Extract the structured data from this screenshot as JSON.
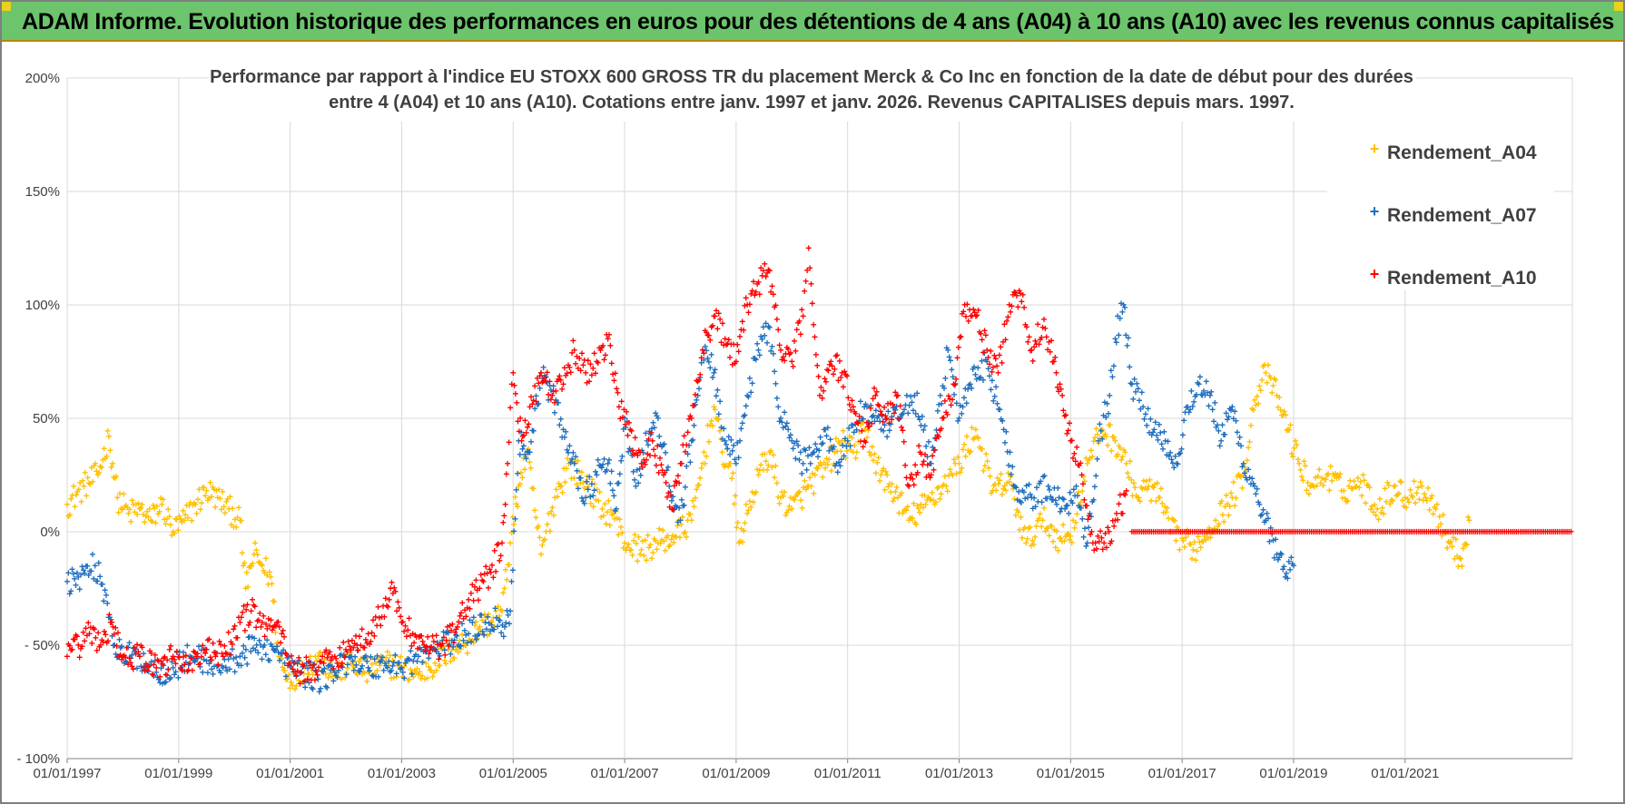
{
  "banner": {
    "title": "ADAM Informe. Evolution historique des performances en euros pour des détentions de 4 ans (A04) à 10 ans (A10) avec les revenus connus capitalisés",
    "background": "#6cc46c"
  },
  "chart_data": {
    "type": "scatter",
    "title_line1": "Performance par rapport à l'indice EU STOXX 600 GROSS TR  du placement Merck & Co Inc en fonction de la date de début pour des durées",
    "title_line2": "entre 4 (A04) et 10 ans (A10). Cotations entre janv. 1997 et janv. 2026. Revenus CAPITALISES depuis mars. 1997.",
    "xlabel": "",
    "ylabel": "",
    "xlim": [
      1997.0,
      2024.0
    ],
    "ylim": [
      -100,
      200
    ],
    "y_ticks": [
      {
        "value": 200,
        "label": "200%"
      },
      {
        "value": 150,
        "label": "150%"
      },
      {
        "value": 100,
        "label": "100%"
      },
      {
        "value": 50,
        "label": "50%"
      },
      {
        "value": 0,
        "label": "0%"
      },
      {
        "value": -50,
        "label": "- 50%"
      },
      {
        "value": -100,
        "label": "- 100%"
      }
    ],
    "x_ticks": [
      {
        "value": 1997,
        "label": "01/01/1997"
      },
      {
        "value": 1999,
        "label": "01/01/1999"
      },
      {
        "value": 2001,
        "label": "01/01/2001"
      },
      {
        "value": 2003,
        "label": "01/01/2003"
      },
      {
        "value": 2005,
        "label": "01/01/2005"
      },
      {
        "value": 2007,
        "label": "01/01/2007"
      },
      {
        "value": 2009,
        "label": "01/01/2009"
      },
      {
        "value": 2011,
        "label": "01/01/2011"
      },
      {
        "value": 2013,
        "label": "01/01/2013"
      },
      {
        "value": 2015,
        "label": "01/01/2015"
      },
      {
        "value": 2017,
        "label": "01/01/2017"
      },
      {
        "value": 2019,
        "label": "01/01/2019"
      },
      {
        "value": 2021,
        "label": "01/01/2021"
      }
    ],
    "grid": true,
    "legend_position": "right",
    "marker": "+",
    "series": [
      {
        "name": "Rendement_A04",
        "color": "#ffc000",
        "x": [
          1997.0,
          1997.3,
          1997.55,
          1997.75,
          1997.9,
          1998.1,
          1998.3,
          1998.5,
          1998.7,
          1998.9,
          1999.1,
          1999.3,
          1999.5,
          1999.7,
          1999.9,
          2000.1,
          2000.2,
          2000.35,
          2000.5,
          2000.65,
          2000.8,
          2000.95,
          2001.2,
          2001.5,
          2001.8,
          2002.1,
          2002.4,
          2002.7,
          2003.0,
          2003.3,
          2003.6,
          2003.9,
          2004.2,
          2004.4,
          2004.6,
          2004.8,
          2004.95,
          2005.1,
          2005.25,
          2005.5,
          2005.75,
          2006.0,
          2006.3,
          2006.6,
          2006.8,
          2007.0,
          2007.3,
          2007.6,
          2007.9,
          2008.2,
          2008.4,
          2008.6,
          2008.75,
          2008.9,
          2009.05,
          2009.2,
          2009.4,
          2009.6,
          2009.8,
          2010.0,
          2010.3,
          2010.6,
          2010.9,
          2011.1,
          2011.3,
          2011.6,
          2011.9,
          2012.1,
          2012.4,
          2012.7,
          2013.0,
          2013.3,
          2013.6,
          2013.9,
          2014.2,
          2014.5,
          2014.8,
          2015.0,
          2015.3,
          2015.55,
          2015.8,
          2016.0,
          2016.2,
          2016.4,
          2016.6,
          2016.8,
          2017.0,
          2017.2,
          2017.4,
          2017.6,
          2017.9,
          2018.1,
          2018.3,
          2018.5,
          2018.7,
          2018.9,
          2019.1,
          2019.3,
          2019.6,
          2019.9,
          2020.2,
          2020.5,
          2020.8,
          2021.0,
          2021.3,
          2021.55,
          2021.8,
          2022.0,
          2022.15
        ],
        "y": [
          12,
          20,
          25,
          42,
          15,
          8,
          10,
          5,
          12,
          0,
          5,
          12,
          18,
          15,
          10,
          5,
          -25,
          -10,
          -15,
          -20,
          -55,
          -65,
          -62,
          -55,
          -62,
          -58,
          -62,
          -58,
          -60,
          -63,
          -58,
          -52,
          -48,
          -42,
          -40,
          -35,
          -5,
          20,
          35,
          -10,
          15,
          30,
          22,
          10,
          8,
          -5,
          -8,
          -5,
          -2,
          5,
          30,
          55,
          35,
          30,
          -5,
          8,
          25,
          35,
          15,
          10,
          20,
          28,
          40,
          35,
          45,
          25,
          15,
          5,
          12,
          20,
          30,
          45,
          18,
          22,
          -5,
          5,
          -3,
          -2,
          30,
          45,
          40,
          30,
          15,
          20,
          15,
          0,
          -3,
          -8,
          -2,
          5,
          15,
          25,
          58,
          70,
          60,
          45,
          30,
          20,
          25,
          18,
          22,
          10,
          20,
          15,
          20,
          10,
          -5,
          -12,
          5
        ]
      },
      {
        "name": "Rendement_A07",
        "color": "#1f6fbf",
        "x": [
          1997.0,
          1997.2,
          1997.5,
          1997.7,
          1997.85,
          1998.0,
          1998.3,
          1998.6,
          1998.9,
          1999.2,
          1999.5,
          1999.8,
          2000.1,
          2000.4,
          2000.7,
          2000.9,
          2001.2,
          2001.5,
          2001.8,
          2002.1,
          2002.4,
          2002.7,
          2003.0,
          2003.3,
          2003.6,
          2003.9,
          2004.2,
          2004.5,
          2004.7,
          2004.85,
          2004.95,
          2005.1,
          2005.3,
          2005.5,
          2005.7,
          2005.9,
          2006.1,
          2006.3,
          2006.5,
          2006.7,
          2006.85,
          2007.0,
          2007.2,
          2007.4,
          2007.6,
          2007.8,
          2008.0,
          2008.2,
          2008.4,
          2008.6,
          2008.8,
          2009.0,
          2009.2,
          2009.4,
          2009.6,
          2009.8,
          2010.0,
          2010.2,
          2010.4,
          2010.6,
          2010.8,
          2011.0,
          2011.3,
          2011.6,
          2011.9,
          2012.2,
          2012.5,
          2012.8,
          2013.0,
          2013.2,
          2013.5,
          2013.8,
          2014.0,
          2014.3,
          2014.6,
          2014.9,
          2015.1,
          2015.3,
          2015.5,
          2015.7,
          2015.8,
          2015.95,
          2016.1,
          2016.3,
          2016.5,
          2016.7,
          2016.9,
          2017.1,
          2017.3,
          2017.5,
          2017.7,
          2017.9,
          2018.1,
          2018.3,
          2018.5,
          2018.7,
          2018.85,
          2019.0
        ],
        "y": [
          -22,
          -20,
          -15,
          -28,
          -50,
          -55,
          -55,
          -62,
          -60,
          -55,
          -57,
          -60,
          -55,
          -50,
          -52,
          -58,
          -62,
          -65,
          -62,
          -55,
          -60,
          -58,
          -60,
          -55,
          -52,
          -48,
          -45,
          -40,
          -38,
          -42,
          -35,
          40,
          35,
          70,
          60,
          45,
          30,
          15,
          25,
          30,
          10,
          50,
          20,
          40,
          50,
          20,
          5,
          40,
          80,
          70,
          40,
          30,
          60,
          80,
          90,
          50,
          40,
          30,
          35,
          45,
          30,
          40,
          55,
          45,
          50,
          60,
          30,
          80,
          50,
          65,
          75,
          45,
          20,
          15,
          20,
          10,
          20,
          -5,
          40,
          60,
          85,
          100,
          65,
          55,
          45,
          40,
          30,
          55,
          65,
          60,
          40,
          55,
          30,
          20,
          5,
          -10,
          -20,
          -15
        ]
      },
      {
        "name": "Rendement_A10",
        "color": "#ff0000",
        "x": [
          1997.0,
          1997.2,
          1997.4,
          1997.6,
          1997.8,
          1998.0,
          1998.3,
          1998.6,
          1998.9,
          1999.2,
          1999.5,
          1999.8,
          2000.1,
          2000.3,
          2000.5,
          2000.7,
          2000.85,
          2001.0,
          2001.2,
          2001.4,
          2001.6,
          2001.8,
          2002.0,
          2002.2,
          2002.4,
          2002.6,
          2002.8,
          2003.0,
          2003.2,
          2003.4,
          2003.6,
          2003.8,
          2004.0,
          2004.2,
          2004.4,
          2004.6,
          2004.8,
          2004.9,
          2005.0,
          2005.15,
          2005.3,
          2005.5,
          2005.7,
          2005.9,
          2006.1,
          2006.3,
          2006.5,
          2006.7,
          2006.9,
          2007.1,
          2007.3,
          2007.5,
          2007.7,
          2007.85,
          2008.0,
          2008.2,
          2008.4,
          2008.6,
          2008.8,
          2009.0,
          2009.2,
          2009.4,
          2009.6,
          2009.8,
          2010.0,
          2010.2,
          2010.3,
          2010.5,
          2010.7,
          2010.9,
          2011.1,
          2011.3,
          2011.5,
          2011.7,
          2011.9,
          2012.1,
          2012.3,
          2012.5,
          2012.7,
          2012.9,
          2013.1,
          2013.3,
          2013.5,
          2013.7,
          2013.9,
          2014.1,
          2014.3,
          2014.5,
          2014.7,
          2014.85,
          2015.0,
          2015.2,
          2015.4,
          2015.6,
          2015.8,
          2016.0
        ],
        "y": [
          -55,
          -50,
          -45,
          -50,
          -40,
          -55,
          -55,
          -60,
          -55,
          -58,
          -52,
          -55,
          -40,
          -35,
          -40,
          -42,
          -45,
          -58,
          -62,
          -60,
          -58,
          -55,
          -52,
          -50,
          -45,
          -38,
          -25,
          -40,
          -45,
          -50,
          -52,
          -48,
          -42,
          -30,
          -25,
          -18,
          -5,
          30,
          70,
          40,
          55,
          70,
          60,
          65,
          80,
          70,
          75,
          85,
          55,
          45,
          30,
          40,
          25,
          10,
          30,
          50,
          80,
          95,
          85,
          75,
          100,
          110,
          115,
          80,
          75,
          95,
          125,
          60,
          75,
          70,
          55,
          40,
          60,
          50,
          60,
          20,
          35,
          25,
          50,
          65,
          100,
          95,
          80,
          70,
          100,
          105,
          80,
          90,
          75,
          60,
          40,
          25,
          -5,
          -5,
          5,
          18
        ]
      }
    ],
    "zero_line_series": {
      "name": "Rendement_A10",
      "from": 2016.1,
      "to": 2024.0,
      "value": 0,
      "color": "#ff0000"
    }
  }
}
